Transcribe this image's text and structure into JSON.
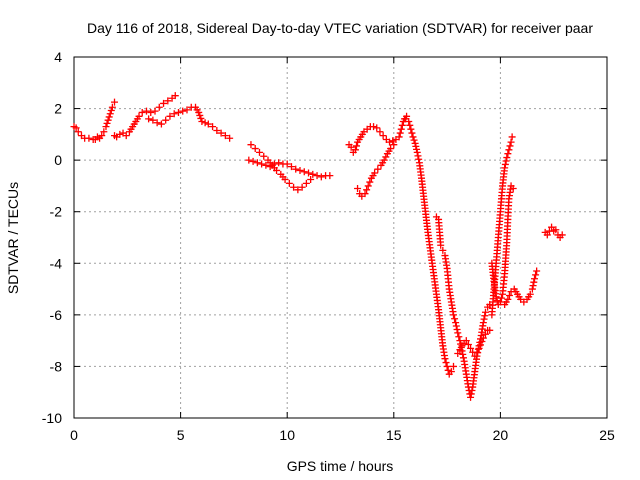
{
  "chart_data": {
    "type": "scatter",
    "title": "Day 116 of 2018, Sidereal Day-to-day VTEC variation (SDTVAR) for receiver paar",
    "xlabel": "GPS time / hours",
    "ylabel": "SDTVAR / TECUs",
    "xlim": [
      0,
      25
    ],
    "ylim": [
      -10,
      4
    ],
    "xticks": [
      0,
      5,
      10,
      15,
      20,
      25
    ],
    "yticks": [
      -10,
      -8,
      -6,
      -4,
      -2,
      0,
      2,
      4
    ],
    "grid": true,
    "legend": "none",
    "marker": "+",
    "color": "#ff0000",
    "series": [
      {
        "values": [
          [
            0.0,
            1.3
          ],
          [
            0.1,
            1.25
          ],
          [
            0.2,
            1.1
          ],
          [
            0.35,
            0.95
          ],
          [
            0.5,
            0.85
          ],
          [
            0.7,
            0.85
          ],
          [
            0.9,
            0.8
          ],
          [
            1.0,
            0.8
          ],
          [
            1.1,
            0.9
          ],
          [
            1.2,
            0.85
          ],
          [
            1.3,
            0.95
          ],
          [
            1.4,
            1.1
          ],
          [
            1.5,
            1.3
          ],
          [
            1.6,
            1.55
          ],
          [
            1.7,
            1.8
          ],
          [
            1.8,
            2.05
          ],
          [
            1.9,
            2.25
          ]
        ]
      },
      {
        "values": [
          [
            1.9,
            0.95
          ],
          [
            2.0,
            0.9
          ],
          [
            2.15,
            1.0
          ],
          [
            2.3,
            1.05
          ],
          [
            2.45,
            0.95
          ],
          [
            2.6,
            1.1
          ],
          [
            2.75,
            1.3
          ],
          [
            2.9,
            1.5
          ],
          [
            3.05,
            1.7
          ],
          [
            3.2,
            1.85
          ],
          [
            3.4,
            1.9
          ],
          [
            3.6,
            1.85
          ],
          [
            3.8,
            1.9
          ],
          [
            4.0,
            2.05
          ],
          [
            4.2,
            2.2
          ],
          [
            4.4,
            2.3
          ],
          [
            4.6,
            2.4
          ],
          [
            4.75,
            2.5
          ]
        ]
      },
      {
        "values": [
          [
            3.5,
            1.6
          ],
          [
            3.7,
            1.55
          ],
          [
            3.9,
            1.45
          ],
          [
            4.1,
            1.4
          ],
          [
            4.3,
            1.55
          ],
          [
            4.5,
            1.7
          ],
          [
            4.7,
            1.8
          ],
          [
            4.9,
            1.85
          ],
          [
            5.1,
            1.9
          ],
          [
            5.3,
            1.95
          ],
          [
            5.5,
            2.05
          ],
          [
            5.7,
            2.05
          ],
          [
            5.85,
            1.85
          ],
          [
            6.0,
            1.5
          ],
          [
            6.15,
            1.45
          ],
          [
            6.3,
            1.4
          ],
          [
            6.5,
            1.3
          ],
          [
            6.7,
            1.15
          ],
          [
            6.9,
            1.05
          ],
          [
            7.1,
            0.95
          ],
          [
            7.3,
            0.85
          ]
        ]
      },
      {
        "values": [
          [
            8.3,
            0.6
          ],
          [
            8.5,
            0.45
          ],
          [
            8.7,
            0.3
          ],
          [
            8.9,
            0.15
          ],
          [
            9.1,
            0.0
          ],
          [
            9.3,
            -0.2
          ],
          [
            9.5,
            -0.4
          ],
          [
            9.7,
            -0.55
          ],
          [
            9.9,
            -0.75
          ],
          [
            10.1,
            -0.9
          ],
          [
            10.3,
            -1.05
          ],
          [
            10.5,
            -1.15
          ],
          [
            10.7,
            -1.05
          ],
          [
            10.9,
            -0.9
          ],
          [
            11.1,
            -0.75
          ]
        ]
      },
      {
        "values": [
          [
            8.2,
            0.0
          ],
          [
            8.4,
            -0.05
          ],
          [
            8.6,
            -0.1
          ],
          [
            8.8,
            -0.15
          ],
          [
            9.0,
            -0.2
          ],
          [
            9.2,
            -0.25
          ],
          [
            9.4,
            -0.15
          ],
          [
            9.6,
            -0.1
          ],
          [
            9.8,
            -0.15
          ],
          [
            10.0,
            -0.15
          ],
          [
            10.2,
            -0.25
          ],
          [
            10.4,
            -0.35
          ],
          [
            10.6,
            -0.4
          ],
          [
            10.8,
            -0.45
          ],
          [
            11.0,
            -0.5
          ],
          [
            11.2,
            -0.55
          ],
          [
            11.4,
            -0.6
          ],
          [
            11.6,
            -0.65
          ],
          [
            11.8,
            -0.6
          ],
          [
            12.0,
            -0.6
          ]
        ]
      },
      {
        "values": [
          [
            12.9,
            0.6
          ],
          [
            13.0,
            0.5
          ],
          [
            13.1,
            0.3
          ],
          [
            13.2,
            0.4
          ],
          [
            13.3,
            0.7
          ],
          [
            13.45,
            0.9
          ],
          [
            13.6,
            1.1
          ],
          [
            13.75,
            1.2
          ],
          [
            13.9,
            1.3
          ],
          [
            14.05,
            1.3
          ],
          [
            14.2,
            1.25
          ],
          [
            14.35,
            1.1
          ],
          [
            14.5,
            0.95
          ],
          [
            14.65,
            0.8
          ],
          [
            14.8,
            0.7
          ],
          [
            14.95,
            0.75
          ],
          [
            15.1,
            0.8
          ],
          [
            15.25,
            0.9
          ],
          [
            15.35,
            1.2
          ],
          [
            15.45,
            1.5
          ],
          [
            15.55,
            1.6
          ]
        ]
      },
      {
        "values": [
          [
            13.3,
            -1.1
          ],
          [
            13.4,
            -1.3
          ],
          [
            13.5,
            -1.4
          ],
          [
            13.65,
            -1.3
          ],
          [
            13.8,
            -1.0
          ],
          [
            13.95,
            -0.7
          ],
          [
            14.1,
            -0.5
          ],
          [
            14.25,
            -0.35
          ],
          [
            14.4,
            -0.2
          ],
          [
            14.55,
            0.0
          ],
          [
            14.7,
            0.25
          ],
          [
            14.85,
            0.45
          ],
          [
            15.0,
            0.6
          ]
        ]
      },
      {
        "values": [
          [
            15.5,
            1.6
          ],
          [
            15.6,
            1.7
          ],
          [
            15.7,
            1.5
          ],
          [
            15.8,
            1.2
          ],
          [
            15.9,
            0.9
          ],
          [
            16.0,
            0.65
          ],
          [
            16.1,
            0.3
          ],
          [
            16.2,
            -0.1
          ],
          [
            16.3,
            -0.7
          ],
          [
            16.4,
            -1.4
          ],
          [
            16.5,
            -2.1
          ],
          [
            16.6,
            -2.8
          ],
          [
            16.7,
            -3.4
          ],
          [
            16.8,
            -4.0
          ],
          [
            16.9,
            -4.6
          ],
          [
            17.0,
            -5.2
          ],
          [
            17.1,
            -5.8
          ],
          [
            17.2,
            -6.5
          ],
          [
            17.3,
            -7.2
          ],
          [
            17.4,
            -7.7
          ],
          [
            17.5,
            -8.0
          ],
          [
            17.6,
            -8.3
          ],
          [
            17.7,
            -8.2
          ],
          [
            17.8,
            -8.0
          ]
        ]
      },
      {
        "values": [
          [
            17.0,
            -2.2
          ],
          [
            17.1,
            -2.3
          ],
          [
            17.2,
            -3.3
          ],
          [
            17.3,
            -3.5
          ],
          [
            17.4,
            -3.7
          ],
          [
            17.5,
            -4.2
          ],
          [
            17.6,
            -5.0
          ],
          [
            17.7,
            -5.5
          ],
          [
            17.8,
            -6.0
          ],
          [
            17.9,
            -6.3
          ],
          [
            18.0,
            -6.7
          ],
          [
            18.1,
            -7.0
          ],
          [
            18.2,
            -7.4
          ],
          [
            18.3,
            -7.8
          ],
          [
            18.4,
            -8.3
          ],
          [
            18.5,
            -8.8
          ],
          [
            18.6,
            -9.2
          ],
          [
            18.7,
            -8.8
          ],
          [
            18.8,
            -8.2
          ],
          [
            18.9,
            -7.6
          ],
          [
            19.0,
            -7.2
          ],
          [
            19.1,
            -6.8
          ],
          [
            19.2,
            -6.3
          ],
          [
            19.3,
            -5.9
          ],
          [
            19.4,
            -5.7
          ],
          [
            19.5,
            -5.6
          ]
        ]
      },
      {
        "values": [
          [
            18.0,
            -7.5
          ],
          [
            18.2,
            -7.2
          ],
          [
            18.4,
            -7.0
          ],
          [
            18.6,
            -7.3
          ],
          [
            18.8,
            -7.6
          ],
          [
            19.0,
            -7.3
          ],
          [
            19.2,
            -6.9
          ],
          [
            19.4,
            -6.6
          ],
          [
            19.5,
            -6.6
          ]
        ]
      },
      {
        "values": [
          [
            19.6,
            -6.0
          ],
          [
            19.7,
            -5.0
          ],
          [
            19.8,
            -4.0
          ],
          [
            19.9,
            -3.0
          ],
          [
            20.0,
            -2.0
          ],
          [
            20.1,
            -1.0
          ],
          [
            20.2,
            -0.3
          ],
          [
            20.3,
            0.1
          ],
          [
            20.4,
            0.4
          ],
          [
            20.5,
            0.7
          ],
          [
            20.55,
            0.9
          ]
        ]
      },
      {
        "values": [
          [
            19.6,
            -4.0
          ],
          [
            19.7,
            -4.7
          ],
          [
            19.8,
            -5.3
          ],
          [
            19.9,
            -5.6
          ],
          [
            20.0,
            -5.5
          ],
          [
            20.1,
            -5.2
          ],
          [
            20.2,
            -4.4
          ],
          [
            20.3,
            -3.2
          ],
          [
            20.35,
            -2.3
          ],
          [
            20.4,
            -1.5
          ],
          [
            20.5,
            -1.0
          ],
          [
            20.6,
            -1.1
          ]
        ]
      },
      {
        "values": [
          [
            20.2,
            -5.6
          ],
          [
            20.35,
            -5.4
          ],
          [
            20.5,
            -5.1
          ],
          [
            20.65,
            -5.0
          ],
          [
            20.8,
            -5.2
          ],
          [
            20.95,
            -5.4
          ],
          [
            21.1,
            -5.5
          ],
          [
            21.25,
            -5.4
          ],
          [
            21.4,
            -5.2
          ],
          [
            21.5,
            -5.0
          ],
          [
            21.6,
            -4.6
          ],
          [
            21.7,
            -4.3
          ]
        ]
      },
      {
        "values": [
          [
            22.1,
            -2.8
          ],
          [
            22.2,
            -2.9
          ],
          [
            22.3,
            -2.75
          ],
          [
            22.4,
            -2.6
          ],
          [
            22.5,
            -2.75
          ],
          [
            22.6,
            -2.7
          ],
          [
            22.7,
            -2.9
          ],
          [
            22.8,
            -3.0
          ],
          [
            22.9,
            -2.9
          ]
        ]
      }
    ]
  }
}
